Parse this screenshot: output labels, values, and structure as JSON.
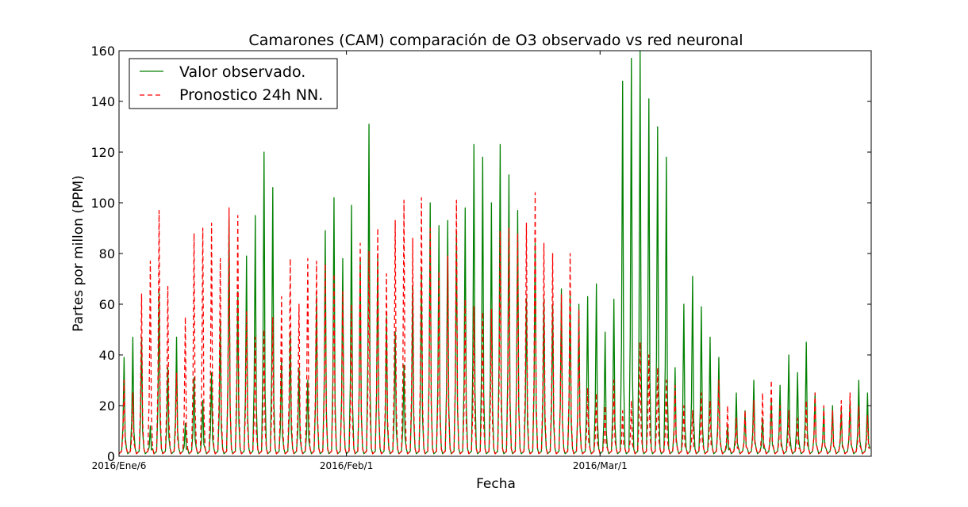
{
  "chart_data": {
    "type": "line",
    "title": "Camarones (CAM) comparación de O3 observado vs red neuronal",
    "xlabel": "Fecha",
    "ylabel": "Partes por millon (PPM)",
    "ylim": [
      0,
      160
    ],
    "xlim": [
      "2016-01-06",
      "2016-04-01"
    ],
    "yticks": [
      0,
      20,
      40,
      60,
      80,
      100,
      120,
      140,
      160
    ],
    "xticks": [
      {
        "date": "2016-01-06",
        "label": "2016/Ene/6"
      },
      {
        "date": "2016-02-01",
        "label": "2016/Feb/1"
      },
      {
        "date": "2016-03-01",
        "label": "2016/Mar/1"
      }
    ],
    "grid": false,
    "legend_position": "top-left",
    "series": [
      {
        "name": "Valor observado.",
        "color": "#008000",
        "style": "solid",
        "sampling": "daily maximum, with a near-zero minimum between daily peaks",
        "start_date": "2016-01-06",
        "end_date": "2016-03-31",
        "daily_peaks": [
          39,
          47,
          47,
          12,
          65,
          35,
          47,
          13,
          31,
          22,
          33,
          54,
          93,
          65,
          79,
          95,
          120,
          106,
          38,
          49,
          35,
          30,
          63,
          89,
          102,
          78,
          99,
          78,
          131,
          79,
          55,
          49,
          36,
          67,
          73,
          100,
          91,
          93,
          89,
          98,
          123,
          118,
          100,
          123,
          111,
          97,
          62,
          84,
          62,
          60,
          66,
          64,
          60,
          63,
          68,
          49,
          62,
          148,
          157,
          160,
          141,
          130,
          118,
          35,
          60,
          71,
          59,
          47,
          39,
          12,
          25,
          18,
          30,
          15,
          22,
          28,
          40,
          33,
          45,
          25,
          19,
          20,
          18,
          22,
          30,
          25
        ]
      },
      {
        "name": "Pronostico 24h NN.",
        "color": "#ff0000",
        "style": "dashed",
        "sampling": "daily maximum, with a near-zero minimum between daily peaks",
        "start_date": "2016-01-06",
        "end_date": "2016-03-31",
        "daily_peaks": [
          30,
          25,
          64,
          77,
          97,
          67,
          33,
          55,
          88,
          90,
          92,
          78,
          98,
          95,
          57,
          47,
          50,
          55,
          63,
          78,
          60,
          78,
          77,
          76,
          72,
          65,
          60,
          84,
          81,
          90,
          72,
          93,
          101,
          86,
          102,
          90,
          73,
          79,
          101,
          62,
          59,
          57,
          58,
          89,
          90,
          88,
          92,
          104,
          84,
          80,
          64,
          80,
          58,
          27,
          25,
          20,
          30,
          18,
          22,
          45,
          40,
          35,
          30,
          28,
          20,
          18,
          25,
          22,
          30,
          20,
          15,
          18,
          22,
          25,
          30,
          20,
          18,
          15,
          22,
          25,
          20,
          18,
          22,
          25,
          20,
          16
        ]
      }
    ]
  }
}
